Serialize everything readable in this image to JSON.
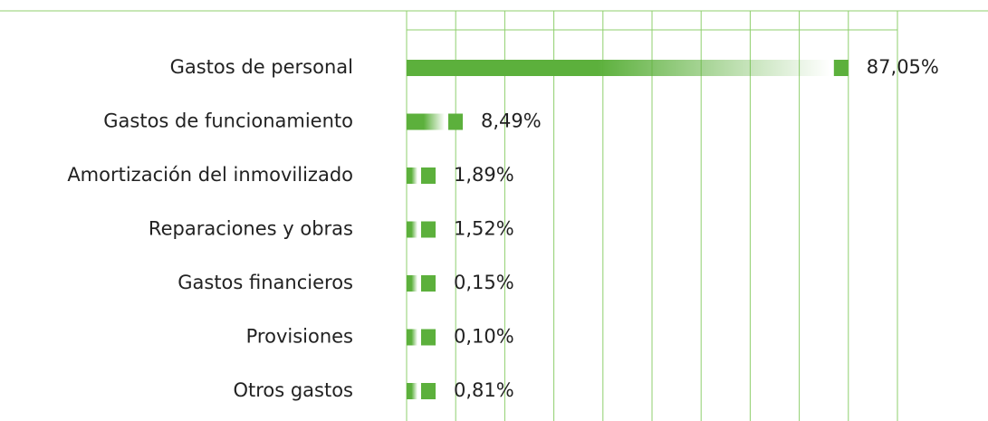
{
  "chart_data": {
    "type": "hbar",
    "categories": [
      "Gastos de personal",
      "Gastos de funcionamiento",
      "Amortización del inmovilizado",
      "Reparaciones y obras",
      "Gastos financieros",
      "Provisiones",
      "Otros gastos"
    ],
    "values": [
      87.05,
      8.49,
      1.89,
      1.52,
      0.15,
      0.1,
      0.81
    ],
    "value_labels": [
      "87,05%",
      "8,49%",
      "1,89%",
      "1,52%",
      "0,15%",
      "0,10%",
      "0,81%"
    ],
    "color": "#5cb03c",
    "xlim": [
      0,
      100
    ],
    "xticks": [
      0,
      10,
      20,
      30,
      40,
      50,
      60,
      70,
      80,
      90,
      100
    ],
    "grid": true
  }
}
